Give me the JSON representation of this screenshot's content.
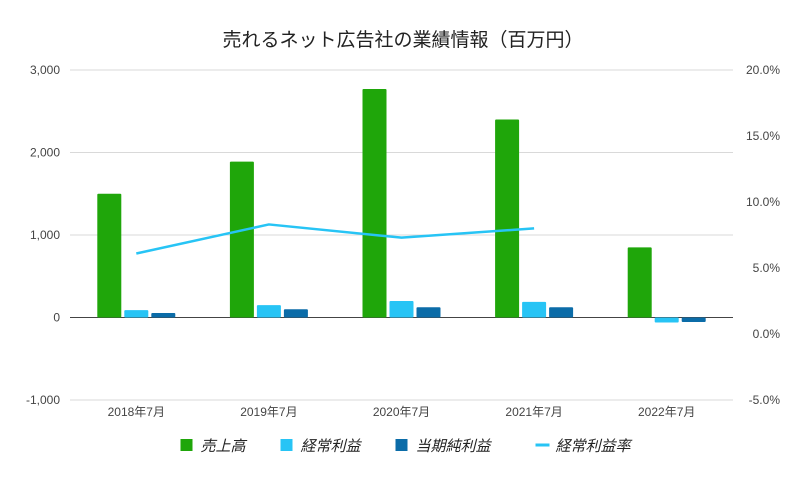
{
  "chart_data": {
    "type": "bar",
    "title": "売れるネット広告社の業績情報（百万円）",
    "categories": [
      "2018年7月",
      "2019年7月",
      "2020年7月",
      "2021年7月",
      "2022年7月"
    ],
    "y_left": {
      "ylim": [
        -1000,
        3000
      ],
      "ticks": [
        -1000,
        0,
        1000,
        2000,
        3000
      ],
      "tick_labels": [
        "-1,000",
        "0",
        "1,000",
        "2,000",
        "3,000"
      ]
    },
    "y_right": {
      "ylim": [
        -5.0,
        20.0
      ],
      "ticks": [
        -5,
        0,
        5,
        10,
        15,
        20
      ],
      "tick_labels": [
        "-5.0%",
        "0.0%",
        "5.0%",
        "10.0%",
        "15.0%",
        "20.0%"
      ]
    },
    "series": [
      {
        "name": "売上高",
        "type": "bar",
        "axis": "left",
        "color": "#1fa60a",
        "values": [
          1500,
          1890,
          2770,
          2400,
          850
        ]
      },
      {
        "name": "経常利益",
        "type": "bar",
        "axis": "left",
        "color": "#27c4f5",
        "values": [
          90,
          150,
          200,
          190,
          -60
        ]
      },
      {
        "name": "当期純利益",
        "type": "bar",
        "axis": "left",
        "color": "#0b6ca8",
        "values": [
          55,
          100,
          125,
          125,
          -55
        ]
      },
      {
        "name": "経常利益率",
        "type": "line",
        "axis": "right",
        "color": "#27c4f5",
        "values": [
          6.1,
          8.3,
          7.3,
          8.0,
          null
        ]
      }
    ],
    "grid": true,
    "legend_position": "bottom"
  }
}
